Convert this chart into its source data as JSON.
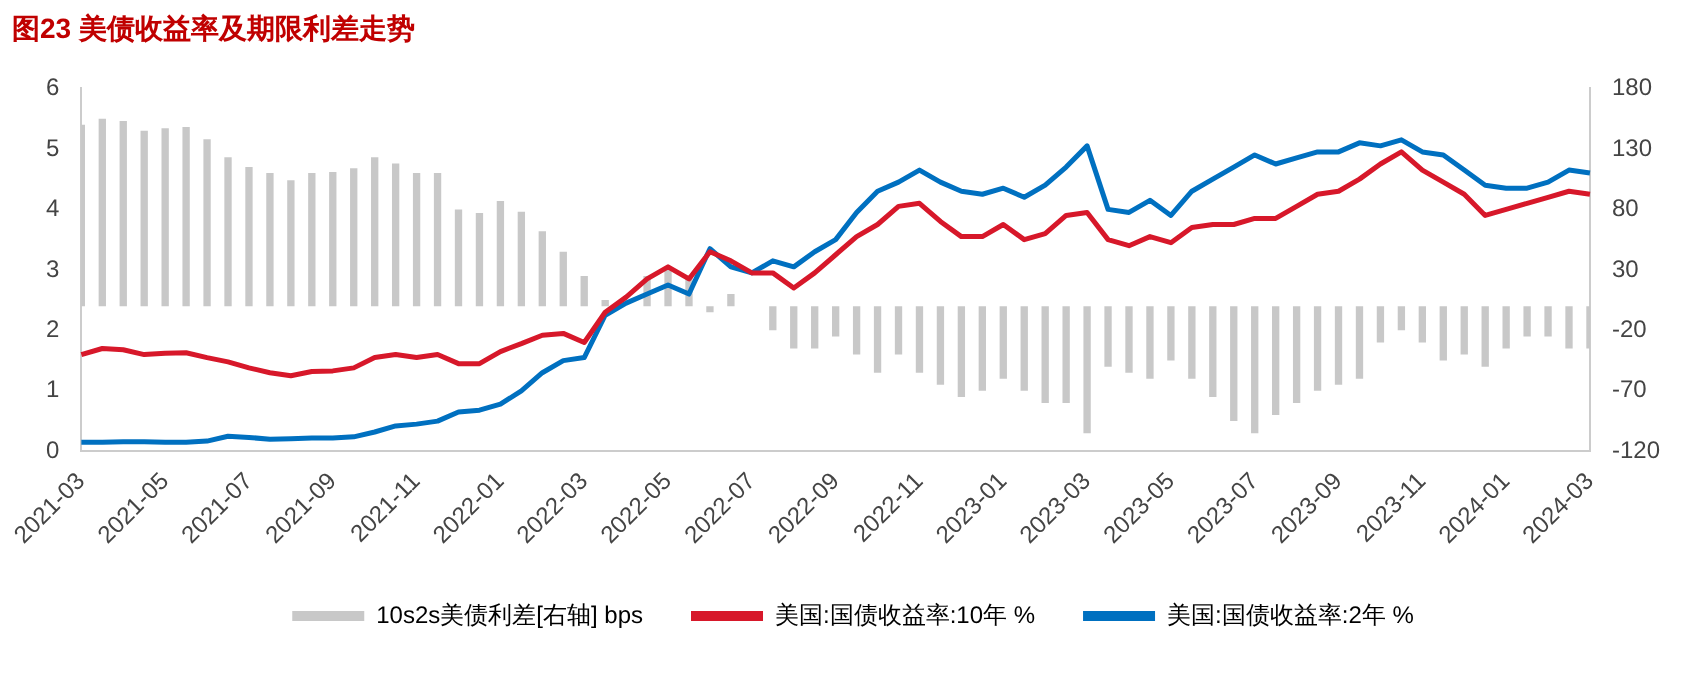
{
  "chart_data": {
    "type": "line",
    "title": "图23  美债收益率及期限利差走势",
    "categories": [
      "2021-03",
      null,
      null,
      null,
      "2021-05",
      null,
      null,
      null,
      "2021-07",
      null,
      null,
      null,
      "2021-09",
      null,
      null,
      null,
      "2021-11",
      null,
      null,
      null,
      "2022-01",
      null,
      null,
      null,
      "2022-03",
      null,
      null,
      null,
      "2022-05",
      null,
      null,
      null,
      "2022-07",
      null,
      null,
      null,
      "2022-09",
      null,
      null,
      null,
      "2022-11",
      null,
      null,
      null,
      "2023-01",
      null,
      null,
      null,
      "2023-03",
      null,
      null,
      null,
      "2023-05",
      null,
      null,
      null,
      "2023-07",
      null,
      null,
      null,
      "2023-09",
      null,
      null,
      null,
      "2023-11",
      null,
      null,
      null,
      "2024-01",
      null,
      null,
      null,
      "2024-03"
    ],
    "series": [
      {
        "name": "10s2s美债利差[右轴] bps",
        "type": "bar",
        "axis": "y2",
        "color": "#c8c8c8",
        "values": [
          150,
          155,
          153,
          145,
          147,
          148,
          138,
          123,
          115,
          110,
          104,
          110,
          111,
          114,
          123,
          118,
          110,
          110,
          80,
          77,
          87,
          78,
          62,
          45,
          25,
          5,
          null,
          25,
          30,
          25,
          -5,
          10,
          0,
          -20,
          -35,
          -35,
          -25,
          -40,
          -55,
          -40,
          -55,
          -65,
          -75,
          -70,
          -60,
          -70,
          -80,
          -80,
          -105,
          -50,
          -55,
          -60,
          -45,
          -60,
          -75,
          -95,
          -105,
          -90,
          -80,
          -70,
          -65,
          -60,
          -30,
          -20,
          -30,
          -45,
          -40,
          -50,
          -35,
          -25,
          -25,
          -35,
          -35
        ]
      },
      {
        "name": "美国:国债收益率:10年 %",
        "color": "#d7182a",
        "values": [
          1.6,
          1.7,
          1.68,
          1.6,
          1.62,
          1.63,
          1.55,
          1.48,
          1.38,
          1.3,
          1.25,
          1.32,
          1.33,
          1.38,
          1.55,
          1.6,
          1.55,
          1.6,
          1.45,
          1.45,
          1.65,
          1.78,
          1.92,
          1.95,
          1.8,
          2.3,
          2.55,
          2.85,
          3.05,
          2.85,
          3.3,
          3.15,
          2.95,
          2.95,
          2.7,
          2.95,
          3.25,
          3.55,
          3.75,
          4.05,
          4.1,
          3.8,
          3.55,
          3.55,
          3.75,
          3.5,
          3.6,
          3.9,
          3.95,
          3.5,
          3.4,
          3.55,
          3.45,
          3.7,
          3.75,
          3.75,
          3.85,
          3.85,
          4.05,
          4.25,
          4.3,
          4.5,
          4.75,
          4.95,
          4.65,
          4.45,
          4.25,
          3.9,
          4.0,
          4.1,
          4.2,
          4.3,
          4.25
        ]
      },
      {
        "name": "美国:国债收益率:2年 %",
        "color": "#0070c0",
        "values": [
          0.15,
          0.15,
          0.16,
          0.16,
          0.15,
          0.15,
          0.17,
          0.25,
          0.23,
          0.2,
          0.21,
          0.22,
          0.22,
          0.24,
          0.32,
          0.42,
          0.45,
          0.5,
          0.65,
          0.68,
          0.78,
          1.0,
          1.3,
          1.5,
          1.55,
          2.25,
          2.45,
          2.6,
          2.75,
          2.6,
          3.35,
          3.05,
          2.95,
          3.15,
          3.05,
          3.3,
          3.5,
          3.95,
          4.3,
          4.45,
          4.65,
          4.45,
          4.3,
          4.25,
          4.35,
          4.2,
          4.4,
          4.7,
          5.05,
          4.0,
          3.95,
          4.15,
          3.9,
          4.3,
          4.5,
          4.7,
          4.9,
          4.75,
          4.85,
          4.95,
          4.95,
          5.1,
          5.05,
          5.15,
          4.95,
          4.9,
          4.65,
          4.4,
          4.35,
          4.35,
          4.45,
          4.65,
          4.6
        ]
      }
    ],
    "ylim": [
      0,
      6
    ],
    "yticks": [
      0,
      1,
      2,
      3,
      4,
      5,
      6
    ],
    "y2lim": [
      -120,
      180
    ],
    "y2ticks": [
      -120,
      -70,
      -20,
      30,
      80,
      130,
      180
    ],
    "grid": false,
    "legend": "bottom",
    "marker": "none",
    "line_style": "solid"
  }
}
